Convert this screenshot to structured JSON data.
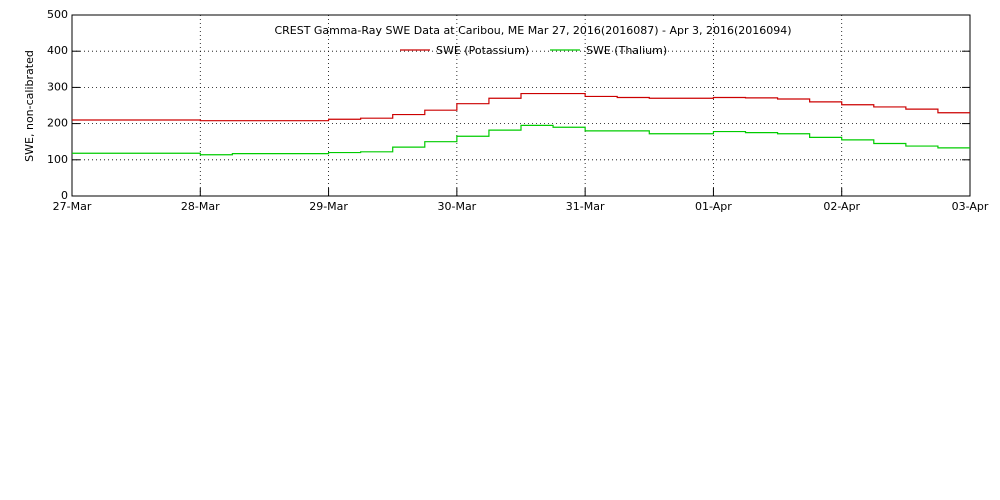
{
  "chart_data": {
    "type": "line",
    "title": "CREST Gamma-Ray SWE Data at Caribou, ME   Mar 27, 2016(2016087) - Apr  3, 2016(2016094)",
    "y_label": "SWE, non-calibrated",
    "x": [
      0,
      0.25,
      0.5,
      0.75,
      1,
      1.25,
      1.5,
      1.75,
      2,
      2.25,
      2.5,
      2.75,
      3,
      3.25,
      3.5,
      3.75,
      4,
      4.25,
      4.5,
      4.75,
      5,
      5.25,
      5.5,
      5.75,
      6,
      6.25,
      6.5,
      6.75,
      7
    ],
    "series": [
      {
        "name": "SWE (Potassium)",
        "color": "#cc0000",
        "values": [
          210,
          210,
          210,
          210,
          208,
          208,
          208,
          208,
          212,
          215,
          225,
          237,
          255,
          270,
          283,
          283,
          275,
          272,
          270,
          270,
          272,
          271,
          268,
          260,
          252,
          246,
          240,
          230,
          230
        ]
      },
      {
        "name": "SWE (Thalium)",
        "color": "#00cc00",
        "values": [
          118,
          118,
          118,
          118,
          114,
          117,
          117,
          117,
          120,
          122,
          135,
          150,
          165,
          182,
          195,
          190,
          180,
          180,
          172,
          172,
          178,
          175,
          172,
          162,
          155,
          145,
          138,
          133,
          133
        ]
      }
    ],
    "xlim": [
      0,
      7
    ],
    "xticks": [
      {
        "value": 0,
        "label": "27-Mar"
      },
      {
        "value": 1,
        "label": "28-Mar"
      },
      {
        "value": 2,
        "label": "29-Mar"
      },
      {
        "value": 3,
        "label": "30-Mar"
      },
      {
        "value": 4,
        "label": "31-Mar"
      },
      {
        "value": 5,
        "label": "01-Apr"
      },
      {
        "value": 6,
        "label": "02-Apr"
      },
      {
        "value": 7,
        "label": "03-Apr"
      }
    ],
    "ylim": [
      0,
      500
    ],
    "yticks": [
      0,
      100,
      200,
      300,
      400,
      500
    ],
    "grid": true,
    "step": true,
    "legend": "top"
  }
}
